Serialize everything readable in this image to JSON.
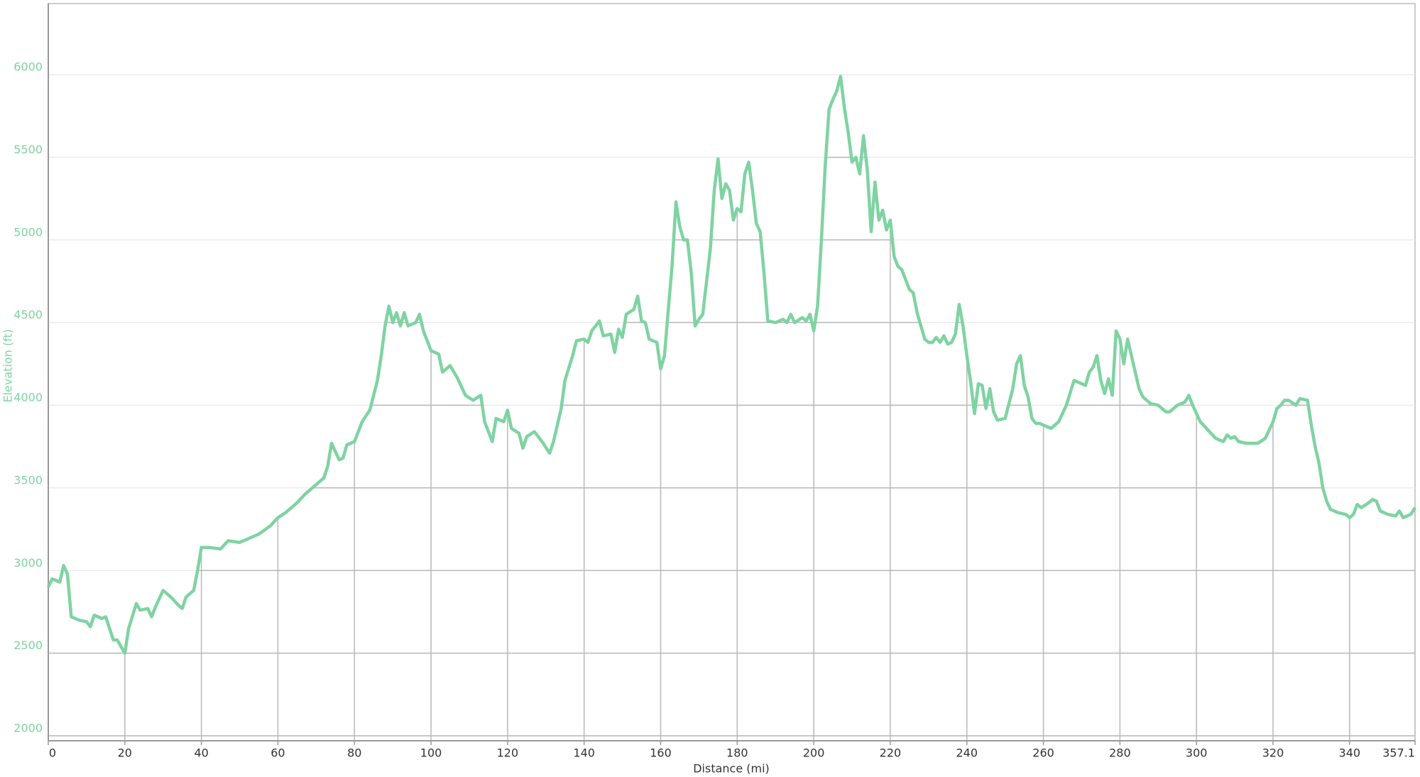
{
  "chart_data": {
    "type": "line",
    "xlabel": "Distance (mi)",
    "ylabel": "Elevation (ft)",
    "xlim": [
      0,
      357.1
    ],
    "ylim": [
      1970,
      6430
    ],
    "xticks": [
      0,
      20,
      40,
      60,
      80,
      100,
      120,
      140,
      160,
      180,
      200,
      220,
      240,
      260,
      280,
      300,
      320,
      340,
      357.1
    ],
    "yticks": [
      2000,
      2500,
      3000,
      3500,
      4000,
      4500,
      5000,
      5500,
      6000
    ],
    "grid": true,
    "series": [
      {
        "color": "#7fd3a2",
        "x": [
          0,
          1,
          3,
          4,
          5,
          6,
          8,
          10,
          11,
          12,
          14,
          15,
          16,
          17,
          18,
          20,
          21,
          23,
          24,
          26,
          27,
          28,
          30,
          32,
          34,
          35,
          36,
          38,
          39,
          40,
          42,
          45,
          47,
          50,
          52,
          55,
          58,
          60,
          62,
          65,
          67,
          69,
          72,
          73,
          74,
          76,
          77,
          78,
          80,
          82,
          84,
          86,
          87,
          88,
          89,
          90,
          91,
          92,
          93,
          94,
          96,
          97,
          98,
          100,
          102,
          103,
          105,
          107,
          109,
          111,
          113,
          114,
          116,
          117,
          119,
          120,
          121,
          123,
          124,
          125,
          127,
          129,
          131,
          132,
          134,
          135,
          137,
          138,
          140,
          141,
          142,
          144,
          145,
          147,
          148,
          149,
          150,
          151,
          153,
          154,
          155,
          156,
          157,
          159,
          160,
          161,
          162,
          163,
          164,
          165,
          166,
          167,
          168,
          169,
          170,
          171,
          173,
          174,
          175,
          176,
          177,
          178,
          179,
          180,
          181,
          182,
          183,
          184,
          185,
          186,
          187,
          188,
          190,
          192,
          193,
          194,
          195,
          197,
          198,
          199,
          200,
          201,
          202,
          203,
          204,
          205,
          206,
          207,
          208,
          209,
          210,
          211,
          212,
          213,
          214,
          215,
          216,
          217,
          218,
          219,
          220,
          221,
          222,
          223,
          225,
          226,
          227,
          228,
          229,
          230,
          231,
          232,
          233,
          234,
          235,
          236,
          237,
          238,
          239,
          240,
          241,
          242,
          243,
          244,
          245,
          246,
          247,
          248,
          250,
          252,
          253,
          254,
          255,
          256,
          257,
          258,
          259,
          261,
          262,
          264,
          265,
          266,
          268,
          269,
          271,
          272,
          273,
          274,
          275,
          276,
          277,
          278,
          279,
          280,
          281,
          282,
          283,
          284,
          285,
          286,
          288,
          290,
          292,
          293,
          295,
          297,
          298,
          299,
          301,
          303,
          305,
          307,
          308,
          309,
          310,
          311,
          313,
          316,
          318,
          320,
          321,
          322,
          323,
          324,
          326,
          327,
          329,
          330,
          331,
          332,
          333,
          334,
          335,
          337,
          339,
          340,
          341,
          342,
          343,
          345,
          346,
          347,
          348,
          350,
          352,
          353,
          354,
          356,
          357.1
        ],
        "values": [
          2900,
          2950,
          2930,
          3030,
          2980,
          2720,
          2700,
          2690,
          2660,
          2730,
          2710,
          2720,
          2650,
          2580,
          2580,
          2500,
          2650,
          2800,
          2760,
          2770,
          2720,
          2780,
          2880,
          2840,
          2790,
          2770,
          2840,
          2880,
          3000,
          3140,
          3140,
          3130,
          3180,
          3170,
          3190,
          3220,
          3270,
          3320,
          3350,
          3410,
          3460,
          3500,
          3560,
          3630,
          3770,
          3670,
          3680,
          3760,
          3780,
          3900,
          3970,
          4150,
          4300,
          4480,
          4600,
          4500,
          4560,
          4480,
          4560,
          4480,
          4500,
          4550,
          4450,
          4330,
          4310,
          4200,
          4240,
          4160,
          4060,
          4030,
          4060,
          3900,
          3780,
          3920,
          3900,
          3970,
          3860,
          3830,
          3740,
          3810,
          3840,
          3780,
          3710,
          3780,
          3980,
          4150,
          4300,
          4390,
          4400,
          4380,
          4450,
          4510,
          4420,
          4430,
          4320,
          4460,
          4410,
          4550,
          4580,
          4660,
          4510,
          4500,
          4400,
          4380,
          4220,
          4300,
          4580,
          4850,
          5230,
          5080,
          5000,
          5000,
          4800,
          4480,
          4520,
          4550,
          4950,
          5300,
          5490,
          5250,
          5340,
          5300,
          5120,
          5190,
          5170,
          5400,
          5470,
          5300,
          5100,
          5050,
          4800,
          4510,
          4500,
          4520,
          4500,
          4550,
          4500,
          4530,
          4510,
          4550,
          4450,
          4600,
          5000,
          5450,
          5790,
          5850,
          5900,
          5990,
          5800,
          5650,
          5470,
          5500,
          5400,
          5630,
          5420,
          5050,
          5350,
          5120,
          5180,
          5060,
          5120,
          4900,
          4840,
          4820,
          4700,
          4680,
          4560,
          4480,
          4400,
          4380,
          4380,
          4410,
          4380,
          4420,
          4370,
          4380,
          4430,
          4610,
          4480,
          4300,
          4140,
          3950,
          4130,
          4120,
          3980,
          4100,
          3960,
          3910,
          3920,
          4100,
          4250,
          4300,
          4120,
          4050,
          3920,
          3890,
          3890,
          3870,
          3860,
          3900,
          3950,
          4000,
          4150,
          4140,
          4120,
          4200,
          4230,
          4300,
          4150,
          4070,
          4160,
          4060,
          4450,
          4400,
          4250,
          4400,
          4300,
          4200,
          4100,
          4050,
          4010,
          4000,
          3960,
          3960,
          4000,
          4020,
          4060,
          4000,
          3900,
          3850,
          3800,
          3780,
          3820,
          3800,
          3810,
          3780,
          3770,
          3770,
          3800,
          3900,
          3980,
          4000,
          4030,
          4030,
          4000,
          4040,
          4030,
          3880,
          3750,
          3650,
          3500,
          3420,
          3370,
          3350,
          3340,
          3320,
          3340,
          3400,
          3380,
          3410,
          3430,
          3420,
          3360,
          3340,
          3330,
          3360,
          3320,
          3340,
          3380
        ]
      }
    ]
  }
}
